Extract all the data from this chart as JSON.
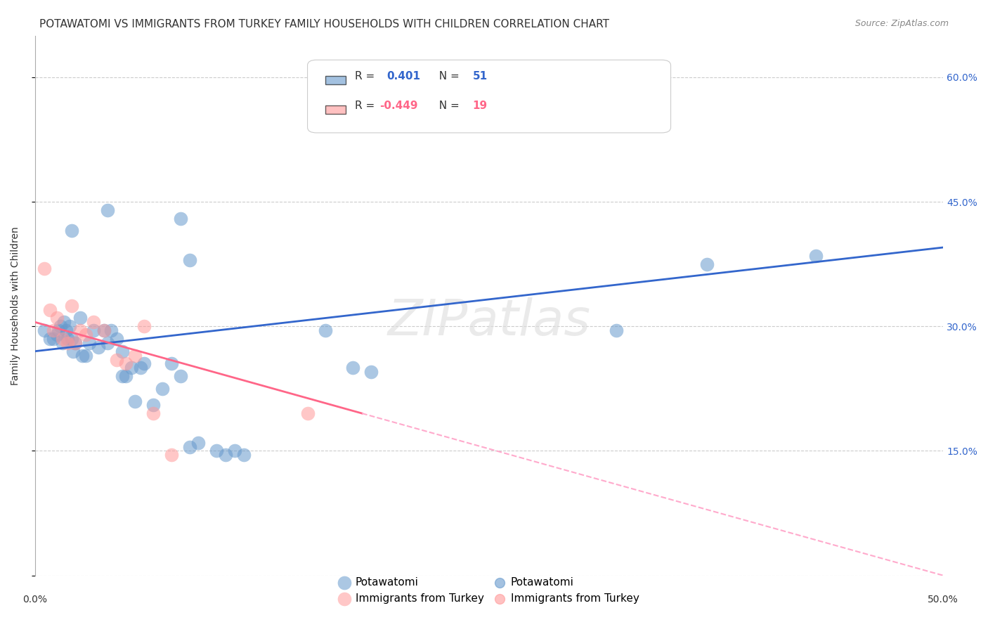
{
  "title": "POTAWATOMI VS IMMIGRANTS FROM TURKEY FAMILY HOUSEHOLDS WITH CHILDREN CORRELATION CHART",
  "source": "Source: ZipAtlas.com",
  "xlabel_bottom": "",
  "ylabel": "Family Households with Children",
  "xlim": [
    0.0,
    0.5
  ],
  "ylim": [
    0.0,
    0.65
  ],
  "xticks": [
    0.0,
    0.05,
    0.1,
    0.15,
    0.2,
    0.25,
    0.3,
    0.35,
    0.4,
    0.45,
    0.5
  ],
  "xtick_labels": [
    "0.0%",
    "",
    "",
    "",
    "",
    "",
    "",
    "",
    "",
    "",
    "50.0%"
  ],
  "yticks": [
    0.0,
    0.15,
    0.3,
    0.45,
    0.6
  ],
  "ytick_labels_left": [
    "",
    "",
    "",
    "",
    ""
  ],
  "ytick_labels_right": [
    "",
    "15.0%",
    "30.0%",
    "45.0%",
    "60.0%"
  ],
  "legend_r1": "R =  0.401   N = 51",
  "legend_r2": "R = -0.449   N = 19",
  "blue_color": "#6699CC",
  "pink_color": "#FF9999",
  "line_blue": "#3366CC",
  "line_pink": "#FF6688",
  "line_pink_dash": "#FFAACC",
  "watermark": "ZIPatlas",
  "blue_scatter": [
    [
      0.005,
      0.295
    ],
    [
      0.008,
      0.285
    ],
    [
      0.01,
      0.285
    ],
    [
      0.012,
      0.29
    ],
    [
      0.013,
      0.295
    ],
    [
      0.014,
      0.3
    ],
    [
      0.015,
      0.28
    ],
    [
      0.016,
      0.305
    ],
    [
      0.017,
      0.295
    ],
    [
      0.018,
      0.285
    ],
    [
      0.019,
      0.3
    ],
    [
      0.02,
      0.285
    ],
    [
      0.021,
      0.27
    ],
    [
      0.022,
      0.28
    ],
    [
      0.025,
      0.31
    ],
    [
      0.026,
      0.265
    ],
    [
      0.028,
      0.265
    ],
    [
      0.03,
      0.28
    ],
    [
      0.032,
      0.295
    ],
    [
      0.035,
      0.275
    ],
    [
      0.038,
      0.295
    ],
    [
      0.04,
      0.28
    ],
    [
      0.042,
      0.295
    ],
    [
      0.045,
      0.285
    ],
    [
      0.048,
      0.27
    ],
    [
      0.048,
      0.24
    ],
    [
      0.05,
      0.24
    ],
    [
      0.053,
      0.25
    ],
    [
      0.055,
      0.21
    ],
    [
      0.058,
      0.25
    ],
    [
      0.06,
      0.255
    ],
    [
      0.065,
      0.205
    ],
    [
      0.07,
      0.225
    ],
    [
      0.075,
      0.255
    ],
    [
      0.08,
      0.24
    ],
    [
      0.085,
      0.155
    ],
    [
      0.09,
      0.16
    ],
    [
      0.1,
      0.15
    ],
    [
      0.105,
      0.145
    ],
    [
      0.11,
      0.15
    ],
    [
      0.115,
      0.145
    ],
    [
      0.02,
      0.415
    ],
    [
      0.04,
      0.44
    ],
    [
      0.08,
      0.43
    ],
    [
      0.085,
      0.38
    ],
    [
      0.16,
      0.295
    ],
    [
      0.175,
      0.25
    ],
    [
      0.185,
      0.245
    ],
    [
      0.32,
      0.295
    ],
    [
      0.37,
      0.375
    ],
    [
      0.43,
      0.385
    ]
  ],
  "pink_scatter": [
    [
      0.005,
      0.37
    ],
    [
      0.008,
      0.32
    ],
    [
      0.01,
      0.295
    ],
    [
      0.012,
      0.31
    ],
    [
      0.015,
      0.285
    ],
    [
      0.018,
      0.28
    ],
    [
      0.02,
      0.325
    ],
    [
      0.022,
      0.28
    ],
    [
      0.025,
      0.295
    ],
    [
      0.028,
      0.29
    ],
    [
      0.032,
      0.305
    ],
    [
      0.038,
      0.295
    ],
    [
      0.045,
      0.26
    ],
    [
      0.05,
      0.255
    ],
    [
      0.055,
      0.265
    ],
    [
      0.06,
      0.3
    ],
    [
      0.065,
      0.195
    ],
    [
      0.075,
      0.145
    ],
    [
      0.15,
      0.195
    ]
  ],
  "blue_trendline": [
    [
      0.0,
      0.27
    ],
    [
      0.5,
      0.395
    ]
  ],
  "pink_trendline": [
    [
      0.0,
      0.305
    ],
    [
      0.5,
      0.0
    ]
  ],
  "title_fontsize": 11,
  "axis_fontsize": 10,
  "tick_fontsize": 10,
  "right_tick_color": "#3366CC"
}
